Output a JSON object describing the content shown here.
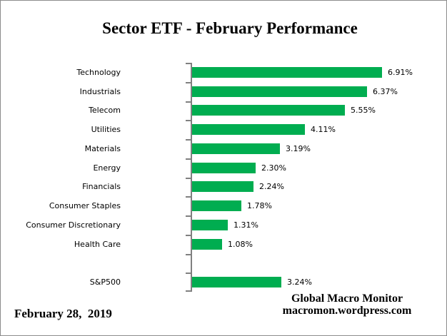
{
  "title": "Sector ETF - February Performance",
  "footer": {
    "date": "February 28,  2019",
    "attribution_line1": "Global Macro Monitor",
    "attribution_line2": "macromon.wordpress.com"
  },
  "colors": {
    "bar": "#00AD50",
    "axis": "#808080",
    "border": "#8c8c8c",
    "text": "#000000"
  },
  "chart_data": {
    "type": "bar",
    "orientation": "horizontal",
    "title": "Sector ETF - February Performance",
    "xlabel": "",
    "ylabel": "",
    "xlim": [
      0,
      7.2
    ],
    "grid": false,
    "legend": false,
    "value_format": "percent",
    "rows": [
      {
        "label": "Technology",
        "value": 6.91,
        "display": "6.91%"
      },
      {
        "label": "Industrials",
        "value": 6.37,
        "display": "6.37%"
      },
      {
        "label": "Telecom",
        "value": 5.55,
        "display": "5.55%"
      },
      {
        "label": "Utilities",
        "value": 4.11,
        "display": "4.11%"
      },
      {
        "label": "Materials",
        "value": 3.19,
        "display": "3.19%"
      },
      {
        "label": "Energy",
        "value": 2.3,
        "display": "2.30%"
      },
      {
        "label": "Financials",
        "value": 2.24,
        "display": "2.24%"
      },
      {
        "label": "Consumer Staples",
        "value": 1.78,
        "display": "1.78%"
      },
      {
        "label": "Consumer Discretionary",
        "value": 1.31,
        "display": "1.31%"
      },
      {
        "label": "Health Care",
        "value": 1.08,
        "display": "1.08%"
      },
      {
        "label": "",
        "value": null,
        "display": ""
      },
      {
        "label": "S&P500",
        "value": 3.24,
        "display": "3.24%"
      }
    ]
  }
}
